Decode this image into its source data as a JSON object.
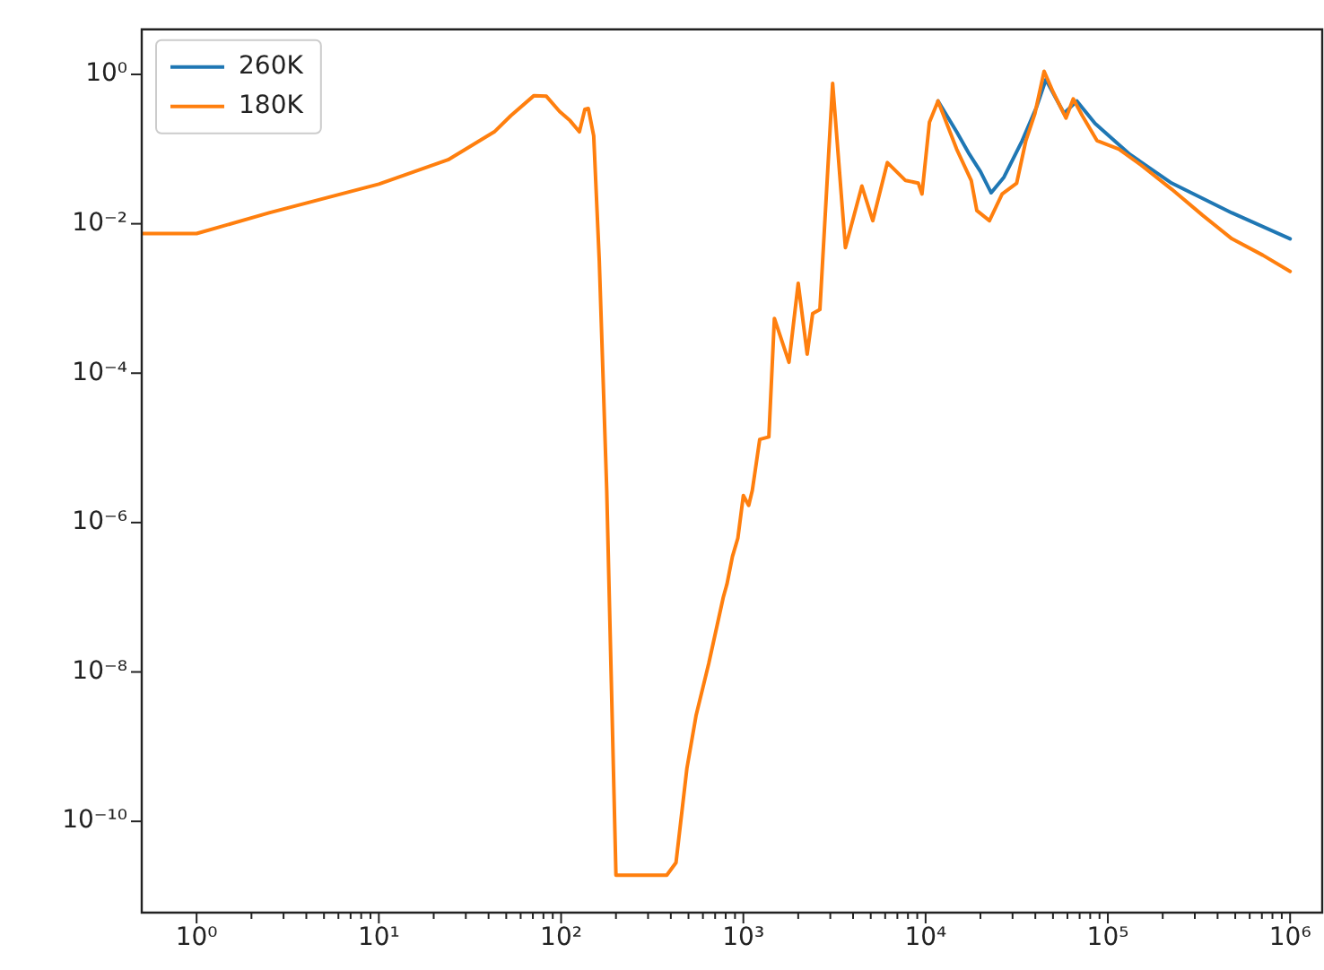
{
  "chart_data": {
    "type": "line",
    "log": "xy",
    "legend": "top left",
    "marker": "none",
    "line_style": "solid",
    "grid": false,
    "xlim": [
      0.5,
      1500000
    ],
    "ylim": [
      6e-12,
      4
    ],
    "xticks": [
      {
        "value": 1,
        "label": "10⁰"
      },
      {
        "value": 2,
        "label": null
      },
      {
        "value": 3,
        "label": null
      },
      {
        "value": 4,
        "label": null
      },
      {
        "value": 5,
        "label": null
      },
      {
        "value": 6,
        "label": null
      },
      {
        "value": 7,
        "label": null
      },
      {
        "value": 8,
        "label": null
      },
      {
        "value": 9,
        "label": null
      },
      {
        "value": 10,
        "label": "10¹"
      },
      {
        "value": 20,
        "label": null
      },
      {
        "value": 30,
        "label": null
      },
      {
        "value": 40,
        "label": null
      },
      {
        "value": 50,
        "label": null
      },
      {
        "value": 60,
        "label": null
      },
      {
        "value": 70,
        "label": null
      },
      {
        "value": 80,
        "label": null
      },
      {
        "value": 90,
        "label": null
      },
      {
        "value": 100,
        "label": "10²"
      },
      {
        "value": 200,
        "label": null
      },
      {
        "value": 300,
        "label": null
      },
      {
        "value": 400,
        "label": null
      },
      {
        "value": 500,
        "label": null
      },
      {
        "value": 600,
        "label": null
      },
      {
        "value": 700,
        "label": null
      },
      {
        "value": 800,
        "label": null
      },
      {
        "value": 900,
        "label": null
      },
      {
        "value": 1000,
        "label": "10³"
      },
      {
        "value": 2000,
        "label": null
      },
      {
        "value": 3000,
        "label": null
      },
      {
        "value": 4000,
        "label": null
      },
      {
        "value": 5000,
        "label": null
      },
      {
        "value": 6000,
        "label": null
      },
      {
        "value": 7000,
        "label": null
      },
      {
        "value": 8000,
        "label": null
      },
      {
        "value": 9000,
        "label": null
      },
      {
        "value": 10000,
        "label": "10⁴"
      },
      {
        "value": 20000,
        "label": null
      },
      {
        "value": 30000,
        "label": null
      },
      {
        "value": 40000,
        "label": null
      },
      {
        "value": 50000,
        "label": null
      },
      {
        "value": 60000,
        "label": null
      },
      {
        "value": 70000,
        "label": null
      },
      {
        "value": 80000,
        "label": null
      },
      {
        "value": 90000,
        "label": null
      },
      {
        "value": 100000,
        "label": "10⁵"
      },
      {
        "value": 200000,
        "label": null
      },
      {
        "value": 300000,
        "label": null
      },
      {
        "value": 400000,
        "label": null
      },
      {
        "value": 500000,
        "label": null
      },
      {
        "value": 600000,
        "label": null
      },
      {
        "value": 700000,
        "label": null
      },
      {
        "value": 800000,
        "label": null
      },
      {
        "value": 900000,
        "label": null
      },
      {
        "value": 1000000,
        "label": "10⁶"
      }
    ],
    "yticks": [
      {
        "value": 1e-10,
        "label": "10⁻¹⁰"
      },
      {
        "value": 1e-08,
        "label": "10⁻⁸"
      },
      {
        "value": 1e-06,
        "label": "10⁻⁶"
      },
      {
        "value": 0.0001,
        "label": "10⁻⁴"
      },
      {
        "value": 0.01,
        "label": "10⁻²"
      },
      {
        "value": 1,
        "label": "10⁰"
      }
    ],
    "series": [
      {
        "name": "260K",
        "color": "#1f77b4",
        "x": [
          11700,
          14800,
          17400,
          20000,
          22900,
          26900,
          33900,
          40700,
          45700,
          57500,
          67600,
          85100,
          132000,
          224000,
          479000,
          1000000
        ],
        "values": [
          0.44,
          0.17,
          0.085,
          0.05,
          0.026,
          0.042,
          0.13,
          0.37,
          0.85,
          0.3,
          0.44,
          0.22,
          0.085,
          0.035,
          0.014,
          0.0063
        ]
      },
      {
        "name": "180K",
        "color": "#ff7f0e",
        "x": [
          0.5,
          1,
          2.5,
          10,
          24,
          43,
          53,
          71,
          83,
          98,
          112,
          126,
          135,
          141,
          151,
          162,
          178,
          200,
          380,
          427,
          490,
          550,
          646,
          776,
          813,
          871,
          933,
          1000,
          1070,
          1120,
          1230,
          1380,
          1480,
          1780,
          2000,
          2240,
          2400,
          2630,
          3090,
          3630,
          4470,
          5130,
          6170,
          7760,
          9120,
          9550,
          10500,
          11700,
          14800,
          17800,
          19100,
          22400,
          26300,
          31600,
          35500,
          39800,
          44700,
          50100,
          58900,
          64600,
          72400,
          87100,
          115000,
          155000,
          224000,
          331000,
          479000,
          708000,
          1000000
        ],
        "values": [
          0.0074,
          0.0074,
          0.014,
          0.034,
          0.072,
          0.17,
          0.28,
          0.52,
          0.51,
          0.32,
          0.24,
          0.17,
          0.34,
          0.35,
          0.15,
          0.0032,
          2.7e-06,
          1.9e-11,
          1.9e-11,
          2.8e-11,
          5.1e-10,
          2.6e-09,
          1.3e-08,
          1e-07,
          1.5e-07,
          3.5e-07,
          6.2e-07,
          2.3e-06,
          1.7e-06,
          2.7e-06,
          1.3e-05,
          1.4e-05,
          0.00054,
          0.00014,
          0.0016,
          0.00018,
          0.00063,
          0.00071,
          0.76,
          0.0048,
          0.032,
          0.011,
          0.066,
          0.038,
          0.035,
          0.025,
          0.23,
          0.44,
          0.1,
          0.038,
          0.015,
          0.011,
          0.025,
          0.035,
          0.13,
          0.3,
          1.1,
          0.58,
          0.26,
          0.47,
          0.28,
          0.13,
          0.1,
          0.059,
          0.029,
          0.013,
          0.0063,
          0.0038,
          0.0023
        ]
      }
    ]
  }
}
